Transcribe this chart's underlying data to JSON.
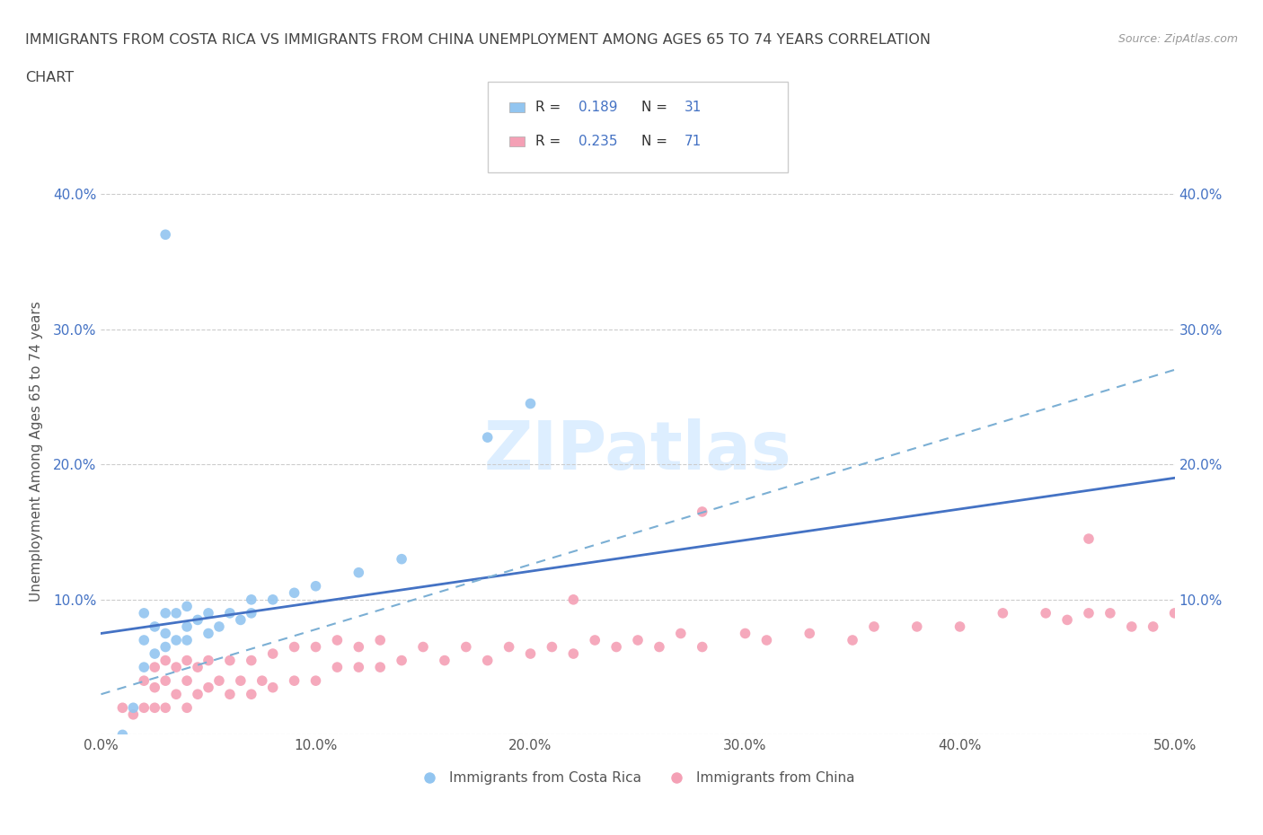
{
  "title_line1": "IMMIGRANTS FROM COSTA RICA VS IMMIGRANTS FROM CHINA UNEMPLOYMENT AMONG AGES 65 TO 74 YEARS CORRELATION",
  "title_line2": "CHART",
  "source_text": "Source: ZipAtlas.com",
  "ylabel": "Unemployment Among Ages 65 to 74 years",
  "xlim": [
    0.0,
    0.5
  ],
  "ylim": [
    0.0,
    0.42
  ],
  "xticks": [
    0.0,
    0.1,
    0.2,
    0.3,
    0.4,
    0.5
  ],
  "xticklabels": [
    "0.0%",
    "10.0%",
    "20.0%",
    "30.0%",
    "40.0%",
    "50.0%"
  ],
  "yticks": [
    0.0,
    0.1,
    0.2,
    0.3,
    0.4
  ],
  "yticklabels": [
    "",
    "10.0%",
    "20.0%",
    "30.0%",
    "40.0%"
  ],
  "costa_rica_color": "#92c5f0",
  "china_color": "#f4a0b5",
  "trendline_cr_color": "#4472c4",
  "trendline_ch_color": "#7bafd4",
  "trendline_ch_linestyle": "--",
  "watermark_color": "#ddeeff",
  "legend_text_color": "#4472c4",
  "label_text_color": "#555555",
  "cr_trend_start_y": 0.075,
  "cr_trend_end_y": 0.19,
  "ch_trend_start_y": 0.03,
  "ch_trend_end_y": 0.27,
  "costa_rica_x": [
    0.01,
    0.015,
    0.02,
    0.02,
    0.02,
    0.025,
    0.025,
    0.03,
    0.03,
    0.03,
    0.035,
    0.035,
    0.04,
    0.04,
    0.04,
    0.045,
    0.05,
    0.05,
    0.055,
    0.06,
    0.065,
    0.07,
    0.07,
    0.08,
    0.09,
    0.1,
    0.12,
    0.14,
    0.18,
    0.2,
    0.03
  ],
  "costa_rica_y": [
    0.0,
    0.02,
    0.05,
    0.07,
    0.09,
    0.06,
    0.08,
    0.065,
    0.075,
    0.09,
    0.07,
    0.09,
    0.07,
    0.08,
    0.095,
    0.085,
    0.075,
    0.09,
    0.08,
    0.09,
    0.085,
    0.09,
    0.1,
    0.1,
    0.105,
    0.11,
    0.12,
    0.13,
    0.22,
    0.245,
    0.37
  ],
  "china_x": [
    0.01,
    0.015,
    0.02,
    0.02,
    0.025,
    0.025,
    0.025,
    0.03,
    0.03,
    0.03,
    0.035,
    0.035,
    0.04,
    0.04,
    0.04,
    0.045,
    0.045,
    0.05,
    0.05,
    0.055,
    0.06,
    0.06,
    0.065,
    0.07,
    0.07,
    0.075,
    0.08,
    0.08,
    0.09,
    0.09,
    0.1,
    0.1,
    0.11,
    0.11,
    0.12,
    0.12,
    0.13,
    0.13,
    0.14,
    0.15,
    0.16,
    0.17,
    0.18,
    0.19,
    0.2,
    0.21,
    0.22,
    0.23,
    0.24,
    0.25,
    0.26,
    0.27,
    0.28,
    0.3,
    0.31,
    0.33,
    0.35,
    0.36,
    0.38,
    0.4,
    0.42,
    0.44,
    0.45,
    0.46,
    0.47,
    0.48,
    0.49,
    0.5,
    0.22,
    0.28,
    0.46
  ],
  "china_y": [
    0.02,
    0.015,
    0.02,
    0.04,
    0.02,
    0.035,
    0.05,
    0.02,
    0.04,
    0.055,
    0.03,
    0.05,
    0.02,
    0.04,
    0.055,
    0.03,
    0.05,
    0.035,
    0.055,
    0.04,
    0.03,
    0.055,
    0.04,
    0.03,
    0.055,
    0.04,
    0.035,
    0.06,
    0.04,
    0.065,
    0.04,
    0.065,
    0.05,
    0.07,
    0.05,
    0.065,
    0.05,
    0.07,
    0.055,
    0.065,
    0.055,
    0.065,
    0.055,
    0.065,
    0.06,
    0.065,
    0.06,
    0.07,
    0.065,
    0.07,
    0.065,
    0.075,
    0.065,
    0.075,
    0.07,
    0.075,
    0.07,
    0.08,
    0.08,
    0.08,
    0.09,
    0.09,
    0.085,
    0.09,
    0.09,
    0.08,
    0.08,
    0.09,
    0.1,
    0.165,
    0.145
  ]
}
